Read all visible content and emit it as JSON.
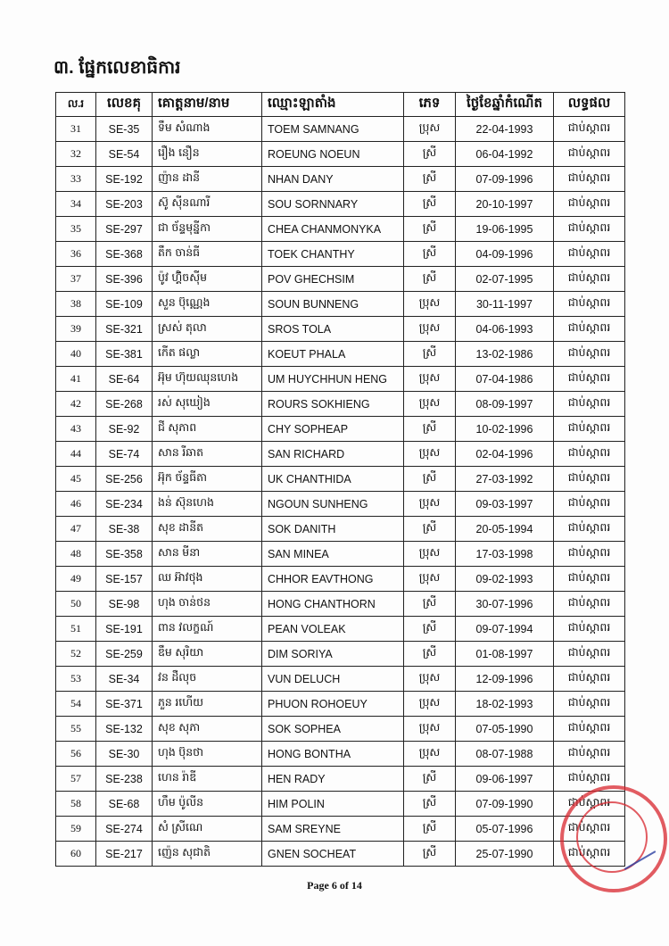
{
  "section_title": "៣. ផ្នែកលេខាធិការ",
  "table": {
    "headers": [
      "ល.រ",
      "លេខគុ",
      "គោត្តនាម/នាម",
      "ឈ្មោះឡាតាំង",
      "ភេទ",
      "ថ្ងៃខែឆ្នាំកំណើត",
      "លទ្ធផល"
    ],
    "rows": [
      [
        "31",
        "SE-35",
        "ទឹម សំណាង",
        "TOEM SAMNANG",
        "ប្រុស",
        "22-04-1993",
        "ជាប់ស្កាពរ"
      ],
      [
        "32",
        "SE-54",
        "រឿង នឿន",
        "ROEUNG NOEUN",
        "ស្រី",
        "06-04-1992",
        "ជាប់ស្កាពរ"
      ],
      [
        "33",
        "SE-192",
        "ញ៉ាន ដានី",
        "NHAN DANY",
        "ស្រី",
        "07-09-1996",
        "ជាប់ស្កាពរ"
      ],
      [
        "34",
        "SE-203",
        "ស៊ូ ស៊ីនណារី",
        "SOU SORNNARY",
        "ស្រី",
        "20-10-1997",
        "ជាប់ស្កាពរ"
      ],
      [
        "35",
        "SE-297",
        "ជា ច័ន្ទមុន្នីកា",
        "CHEA CHANMONYKA",
        "ស្រី",
        "19-06-1995",
        "ជាប់ស្កាពរ"
      ],
      [
        "36",
        "SE-368",
        "តឹក ចាន់ធី",
        "TOEK CHANTHY",
        "ស្រី",
        "04-09-1996",
        "ជាប់ស្កាពរ"
      ],
      [
        "37",
        "SE-396",
        "ប៉ូវ ហ៊្គិចស៊ីម",
        "POV GHECHSIM",
        "ស្រី",
        "02-07-1995",
        "ជាប់ស្កាពរ"
      ],
      [
        "38",
        "SE-109",
        "សួន ប៊ុណ្ណេង",
        "SOUN BUNNENG",
        "ប្រុស",
        "30-11-1997",
        "ជាប់ស្កាពរ"
      ],
      [
        "39",
        "SE-321",
        "ស្រស់ តុលា",
        "SROS TOLA",
        "ប្រុស",
        "04-06-1993",
        "ជាប់ស្កាពរ"
      ],
      [
        "40",
        "SE-381",
        "កើត ផល្លា",
        "KOEUT PHALA",
        "ស្រី",
        "13-02-1986",
        "ជាប់ស្កាពរ"
      ],
      [
        "41",
        "SE-64",
        "អ៊ុម ហ៊ុយឈុនហេង",
        "UM HUYCHHUN HENG",
        "ប្រុស",
        "07-04-1986",
        "ជាប់ស្កាពរ"
      ],
      [
        "42",
        "SE-268",
        "រស់ សុឃៀង",
        "ROURS SOKHIENG",
        "ប្រុស",
        "08-09-1997",
        "ជាប់ស្កាពរ"
      ],
      [
        "43",
        "SE-92",
        "ជី សុភាព",
        "CHY SOPHEAP",
        "ស្រី",
        "10-02-1996",
        "ជាប់ស្កាពរ"
      ],
      [
        "44",
        "SE-74",
        "សាន រីឆាត",
        "SAN RICHARD",
        "ប្រុស",
        "02-04-1996",
        "ជាប់ស្កាពរ"
      ],
      [
        "45",
        "SE-256",
        "អ៊ុក ច័ន្ទធីតា",
        "UK CHANTHIDA",
        "ស្រី",
        "27-03-1992",
        "ជាប់ស្កាពរ"
      ],
      [
        "46",
        "SE-234",
        "ងន់ ស៊ុនហេង",
        "NGOUN SUNHENG",
        "ប្រុស",
        "09-03-1997",
        "ជាប់ស្កាពរ"
      ],
      [
        "47",
        "SE-38",
        "សុខ ដានីត",
        "SOK DANITH",
        "ស្រី",
        "20-05-1994",
        "ជាប់ស្កាពរ"
      ],
      [
        "48",
        "SE-358",
        "សាន មីនា",
        "SAN MINEA",
        "ប្រុស",
        "17-03-1998",
        "ជាប់ស្កាពរ"
      ],
      [
        "49",
        "SE-157",
        "ឈ អ៊ាវថុង",
        "CHHOR EAVTHONG",
        "ប្រុស",
        "09-02-1993",
        "ជាប់ស្កាពរ"
      ],
      [
        "50",
        "SE-98",
        "ហុង ចាន់ថន",
        "HONG CHANTHORN",
        "ស្រី",
        "30-07-1996",
        "ជាប់ស្កាពរ"
      ],
      [
        "51",
        "SE-191",
        "ពាន វលក្ខណ៍",
        "PEAN VOLEAK",
        "ស្រី",
        "09-07-1994",
        "ជាប់ស្កាពរ"
      ],
      [
        "52",
        "SE-259",
        "ឌឹម សុរិយា",
        "DIM SORIYA",
        "ស្រី",
        "01-08-1997",
        "ជាប់ស្កាពរ"
      ],
      [
        "53",
        "SE-34",
        "វន ដឺលុច",
        "VUN DELUCH",
        "ប្រុស",
        "12-09-1996",
        "ជាប់ស្កាពរ"
      ],
      [
        "54",
        "SE-371",
        "ភួន រហើយ",
        "PHUON ROHOEUY",
        "ប្រុស",
        "18-02-1993",
        "ជាប់ស្កាពរ"
      ],
      [
        "55",
        "SE-132",
        "សុខ សុភា",
        "SOK SOPHEA",
        "ប្រុស",
        "07-05-1990",
        "ជាប់ស្កាពរ"
      ],
      [
        "56",
        "SE-30",
        "ហុង ប៊ុនថា",
        "HONG BONTHA",
        "ប្រុស",
        "08-07-1988",
        "ជាប់ស្កាពរ"
      ],
      [
        "57",
        "SE-238",
        "ហេន រ៉ាឌី",
        "HEN RADY",
        "ស្រី",
        "09-06-1997",
        "ជាប់ស្កាពរ"
      ],
      [
        "58",
        "SE-68",
        "ហឹម ប៉ូលីន",
        "HIM POLIN",
        "ស្រី",
        "07-09-1990",
        "ជាប់ស្កាពរ"
      ],
      [
        "59",
        "SE-274",
        "សំ ស្រីណេ",
        "SAM SREYNE",
        "ស្រី",
        "05-07-1996",
        "ជាប់ស្កាពរ"
      ],
      [
        "60",
        "SE-217",
        "ញ៉េន សុជាតិ",
        "GNEN SOCHEAT",
        "ស្រី",
        "25-07-1990",
        "ជាប់ស្កាពរ"
      ]
    ]
  },
  "footer": "Page 6 of 14",
  "stamp_color": "#d8262e"
}
